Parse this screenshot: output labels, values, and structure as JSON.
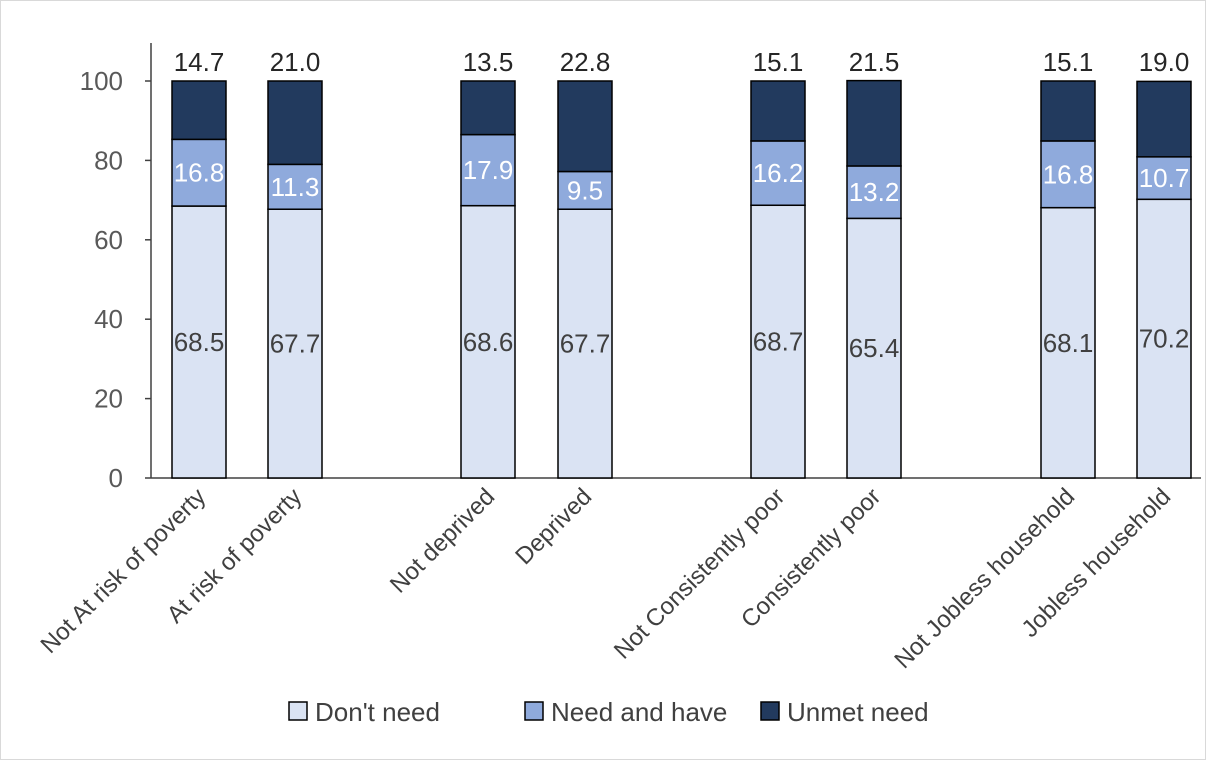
{
  "chart_data": {
    "type": "bar",
    "stacked": true,
    "categories": [
      "Not At risk of poverty",
      "At risk of poverty",
      "Not deprived",
      "Deprived",
      "Not Consistently poor",
      "Consistently poor",
      "Not Jobless household",
      "Jobless household"
    ],
    "series": [
      {
        "name": "Don't need",
        "color": "#dae3f3",
        "label_color": "#404040",
        "values": [
          68.5,
          67.7,
          68.6,
          67.7,
          68.7,
          65.4,
          68.1,
          70.2
        ]
      },
      {
        "name": "Need and have",
        "color": "#8faadc",
        "label_color": "#ffffff",
        "values": [
          16.8,
          11.3,
          17.9,
          9.5,
          16.2,
          13.2,
          16.8,
          10.7
        ]
      },
      {
        "name": "Unmet need",
        "color": "#223a5e",
        "label_color": "#262626",
        "values": [
          14.7,
          21.0,
          13.5,
          22.8,
          15.1,
          21.5,
          15.1,
          19.0
        ]
      }
    ],
    "ylim": [
      0,
      100
    ],
    "yticks": [
      0,
      20,
      40,
      60,
      80,
      100
    ],
    "xlabel": "",
    "ylabel": "",
    "title": "",
    "grid": false,
    "legend": "bottom"
  }
}
